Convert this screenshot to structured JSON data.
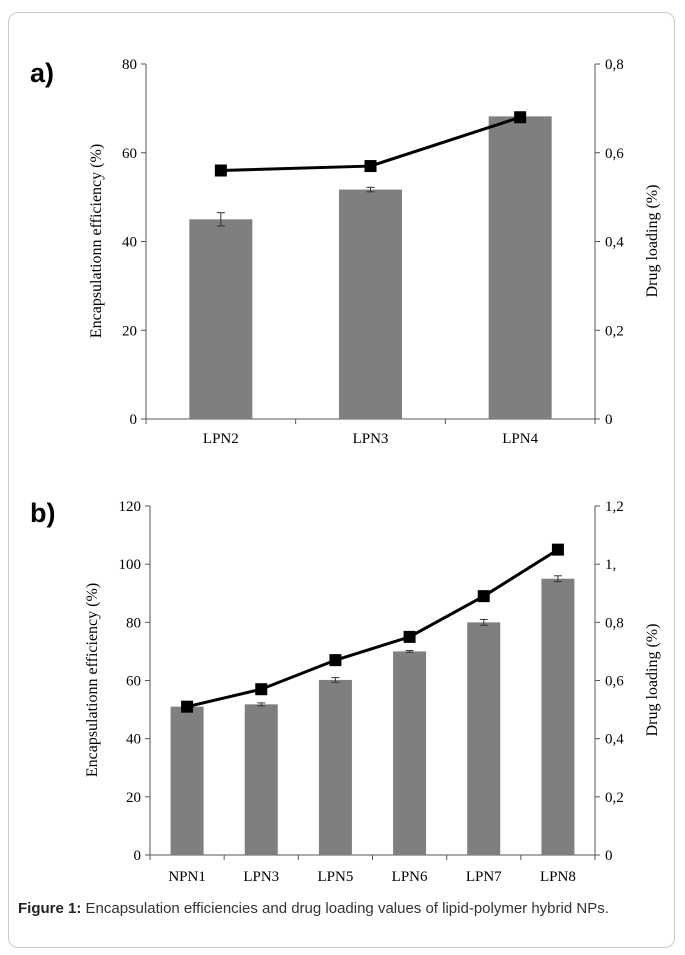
{
  "caption": {
    "label": "Figure 1:",
    "text": "Encapsulation efficiencies and drug loading values of lipid-polymer hybrid NPs."
  },
  "colors": {
    "bar": "#7f7f7f",
    "line": "#000000",
    "marker": "#000000"
  },
  "chart_data": [
    {
      "panel": "a)",
      "type": "bar+line",
      "categories": [
        "LPN2",
        "LPN3",
        "LPN4"
      ],
      "bar_values": [
        45,
        51.7,
        68.2
      ],
      "bar_errors": [
        1.5,
        0.5,
        0
      ],
      "line_values": [
        0.56,
        0.57,
        0.68
      ],
      "ylabel_left": "Encapsulationn efficiency (%)",
      "ylabel_right": "Drug loading (%)",
      "ylim_left": [
        0,
        80
      ],
      "yticks_left": [
        "0",
        "20",
        "40",
        "60",
        "80"
      ],
      "ylim_right": [
        0,
        0.8
      ],
      "yticks_right": [
        "0",
        "0,2",
        "0,4",
        "0,6",
        "0,8"
      ]
    },
    {
      "panel": "b)",
      "type": "bar+line",
      "categories": [
        "NPN1",
        "LPN3",
        "LPN5",
        "LPN6",
        "LPN7",
        "LPN8"
      ],
      "bar_values": [
        51,
        51.8,
        60.2,
        70,
        80,
        95
      ],
      "bar_errors": [
        0,
        0.5,
        0.8,
        0.3,
        1,
        1
      ],
      "line_values": [
        0.51,
        0.57,
        0.67,
        0.75,
        0.89,
        1.05
      ],
      "ylabel_left": "Encapsulationn efficiency (%)",
      "ylabel_right": "Drug loading (%)",
      "ylim_left": [
        0,
        120
      ],
      "yticks_left": [
        "0",
        "20",
        "40",
        "60",
        "80",
        "100",
        "120"
      ],
      "ylim_right": [
        0,
        1.2
      ],
      "yticks_right": [
        "0",
        "0,2",
        "0,4",
        "0,6",
        "0,8",
        "1,",
        "1,2"
      ]
    }
  ]
}
